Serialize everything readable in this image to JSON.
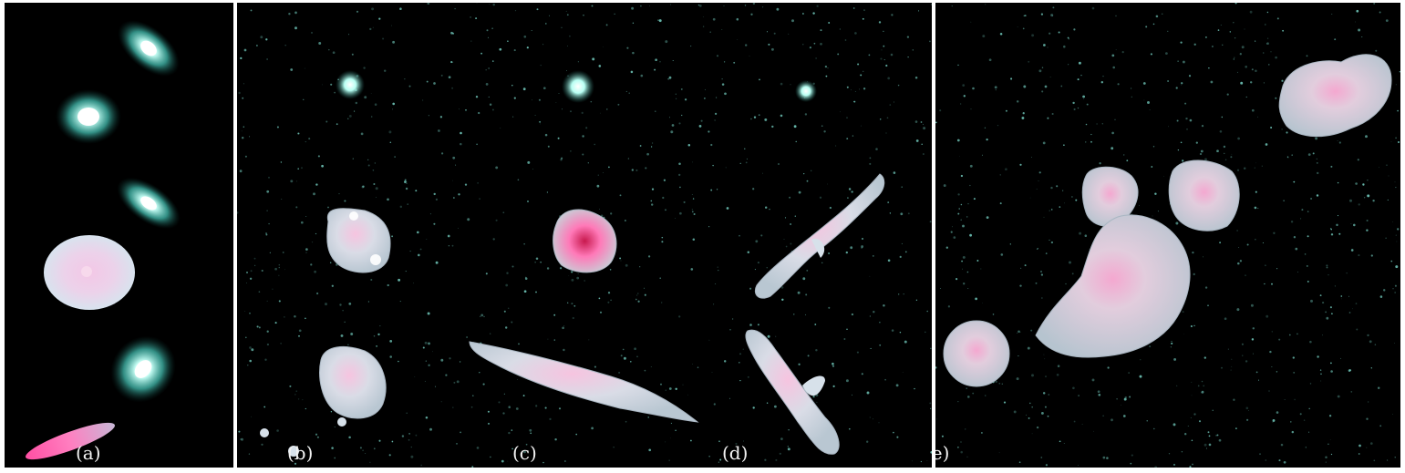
{
  "figure": {
    "background": "#000000",
    "particle_color": "#7fe3d4",
    "surface_color": "#d7e1ea",
    "highlight_color": "#ff6fb0",
    "panels": [
      {
        "id": "a",
        "label": "(a)"
      },
      {
        "id": "b",
        "label": "(b)"
      },
      {
        "id": "c",
        "label": "(c)"
      },
      {
        "id": "d",
        "label": "(d)"
      },
      {
        "id": "e",
        "label": "(e)"
      }
    ]
  }
}
